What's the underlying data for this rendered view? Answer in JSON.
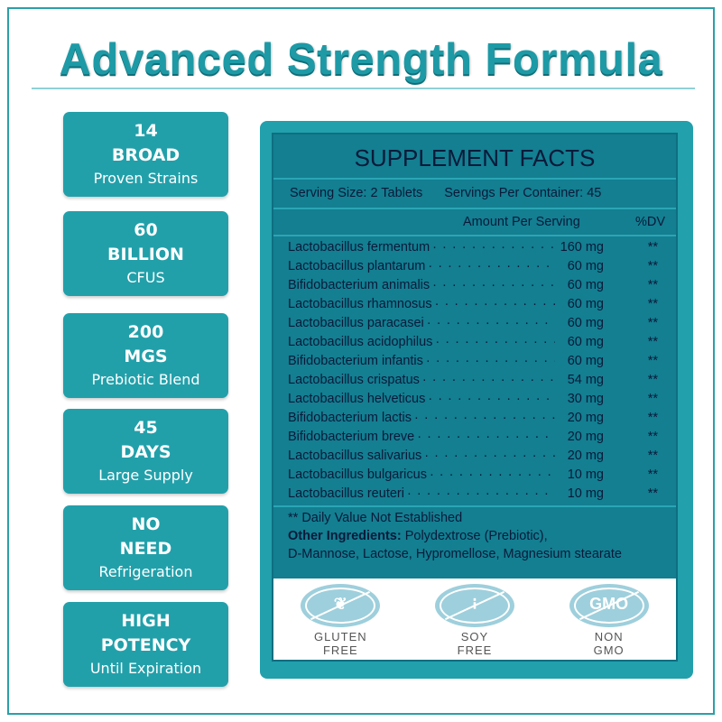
{
  "title": "Advanced Strength Formula",
  "badges": [
    {
      "n1": "14",
      "n2": "BROAD",
      "s": "Proven Strains"
    },
    {
      "n1": "60",
      "n2": "BILLION",
      "s": "CFUS"
    },
    {
      "n1": "200",
      "n2": "MGS",
      "s": "Prebiotic Blend"
    },
    {
      "n1": "45",
      "n2": "DAYS",
      "s": "Large Supply"
    },
    {
      "n1": "NO",
      "n2": "NEED",
      "s": "Refrigeration"
    },
    {
      "n1": "HIGH",
      "n2": "POTENCY",
      "s": "Until Expiration"
    }
  ],
  "facts": {
    "heading": "SUPPLEMENT FACTS",
    "serving_size": "Serving Size: 2 Tablets",
    "servings_per_container": "Servings Per Container: 45",
    "col_amount": "Amount Per Serving",
    "col_dv": "%DV",
    "rows": [
      {
        "name": "Lactobacillus fermentum",
        "amount": "160 mg",
        "dv": "**"
      },
      {
        "name": "Lactobacillus plantarum",
        "amount": "60 mg",
        "dv": "**"
      },
      {
        "name": "Bifidobacterium animalis",
        "amount": "60 mg",
        "dv": "**"
      },
      {
        "name": "Lactobacillus rhamnosus",
        "amount": "60 mg",
        "dv": "**"
      },
      {
        "name": "Lactobacillus paracasei",
        "amount": "60 mg",
        "dv": "**"
      },
      {
        "name": "Lactobacillus acidophilus",
        "amount": "60 mg",
        "dv": "**"
      },
      {
        "name": "Bifidobacterium infantis",
        "amount": "60 mg",
        "dv": "**"
      },
      {
        "name": "Lactobacillus crispatus",
        "amount": "54 mg",
        "dv": "**"
      },
      {
        "name": "Lactobacillus helveticus",
        "amount": "30 mg",
        "dv": "**"
      },
      {
        "name": "Bifidobacterium lactis",
        "amount": "20 mg",
        "dv": "**"
      },
      {
        "name": "Bifidobacterium breve",
        "amount": "20 mg",
        "dv": "**"
      },
      {
        "name": "Lactobacillus salivarius",
        "amount": "20 mg",
        "dv": "**"
      },
      {
        "name": "Lactobacillus bulgaricus",
        "amount": "10 mg",
        "dv": "**"
      },
      {
        "name": "Lactobacillus reuteri",
        "amount": "10 mg",
        "dv": "**"
      }
    ],
    "footnote": "** Daily Value Not Established",
    "other_label": "Other Ingredients:",
    "other_line1": " Polydextrose (Prebiotic),",
    "other_line2": "D-Mannose, Lactose, Hypromellose, Magnesium stearate"
  },
  "icons": [
    {
      "icon": "wheat-crossed-icon",
      "l1": "GLUTEN",
      "l2": "FREE",
      "glyph": "❦"
    },
    {
      "icon": "soy-crossed-icon",
      "l1": "SOY",
      "l2": "FREE",
      "glyph": "⁝"
    },
    {
      "icon": "gmo-crossed-icon",
      "l1": "NON",
      "l2": "GMO",
      "glyph": "GMO"
    }
  ],
  "colors": {
    "teal": "#22a0ac",
    "dark_teal": "#137f91",
    "title": "#1d9aa6"
  }
}
